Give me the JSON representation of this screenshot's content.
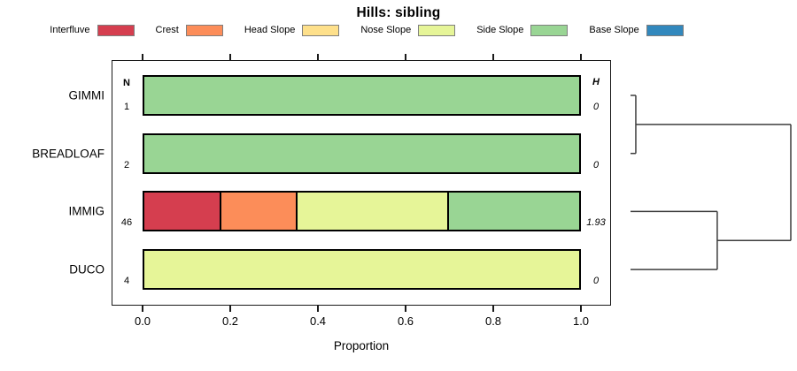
{
  "title": "Hills: sibling",
  "legend": {
    "items": [
      {
        "label": "Interfluve",
        "color": "#D53E4F"
      },
      {
        "label": "Crest",
        "color": "#FC8D59"
      },
      {
        "label": "Head Slope",
        "color": "#FEE08B"
      },
      {
        "label": "Nose Slope",
        "color": "#E6F598"
      },
      {
        "label": "Side Slope",
        "color": "#99D594"
      },
      {
        "label": "Base Slope",
        "color": "#3288BD"
      }
    ]
  },
  "columns": {
    "n_header": "N",
    "h_header": "H"
  },
  "x_axis": {
    "label": "Proportion",
    "tick_labels": [
      "0.0",
      "0.2",
      "0.4",
      "0.6",
      "0.8",
      "1.0"
    ]
  },
  "chart_data": {
    "type": "bar",
    "orientation": "horizontal",
    "stacked": true,
    "title": "Hills: sibling",
    "xlabel": "Proportion",
    "xlim": [
      0,
      1
    ],
    "xticks": [
      0,
      0.2,
      0.4,
      0.6,
      0.8,
      1.0
    ],
    "grid": false,
    "legend_position": "top",
    "categories": [
      "GIMMI",
      "BREADLOAF",
      "IMMIG",
      "DUCO"
    ],
    "series": [
      {
        "name": "Interfluve",
        "color": "#D53E4F",
        "values": [
          0,
          0,
          0.174,
          0
        ]
      },
      {
        "name": "Crest",
        "color": "#FC8D59",
        "values": [
          0,
          0,
          0.174,
          0
        ]
      },
      {
        "name": "Head Slope",
        "color": "#FEE08B",
        "values": [
          0,
          0,
          0,
          0
        ]
      },
      {
        "name": "Nose Slope",
        "color": "#E6F598",
        "values": [
          0,
          0,
          0.348,
          1
        ]
      },
      {
        "name": "Side Slope",
        "color": "#99D594",
        "values": [
          1,
          1,
          0.304,
          0
        ]
      },
      {
        "name": "Base Slope",
        "color": "#3288BD",
        "values": [
          0,
          0,
          0,
          0
        ]
      }
    ],
    "row_annotations": {
      "n": [
        "1",
        "2",
        "46",
        "4"
      ],
      "h": [
        "0",
        "0",
        "1.93",
        "0"
      ]
    },
    "dendrogram": {
      "side": "right",
      "leaves": [
        "GIMMI",
        "BREADLOAF",
        "IMMIG",
        "DUCO"
      ],
      "merges": [
        {
          "a": "GIMMI",
          "b": "BREADLOAF",
          "height": 0.033
        },
        {
          "a": "IMMIG",
          "b": "DUCO",
          "height": 0.541
        },
        {
          "a": "m0",
          "b": "m1",
          "height": 1.0
        }
      ]
    }
  }
}
